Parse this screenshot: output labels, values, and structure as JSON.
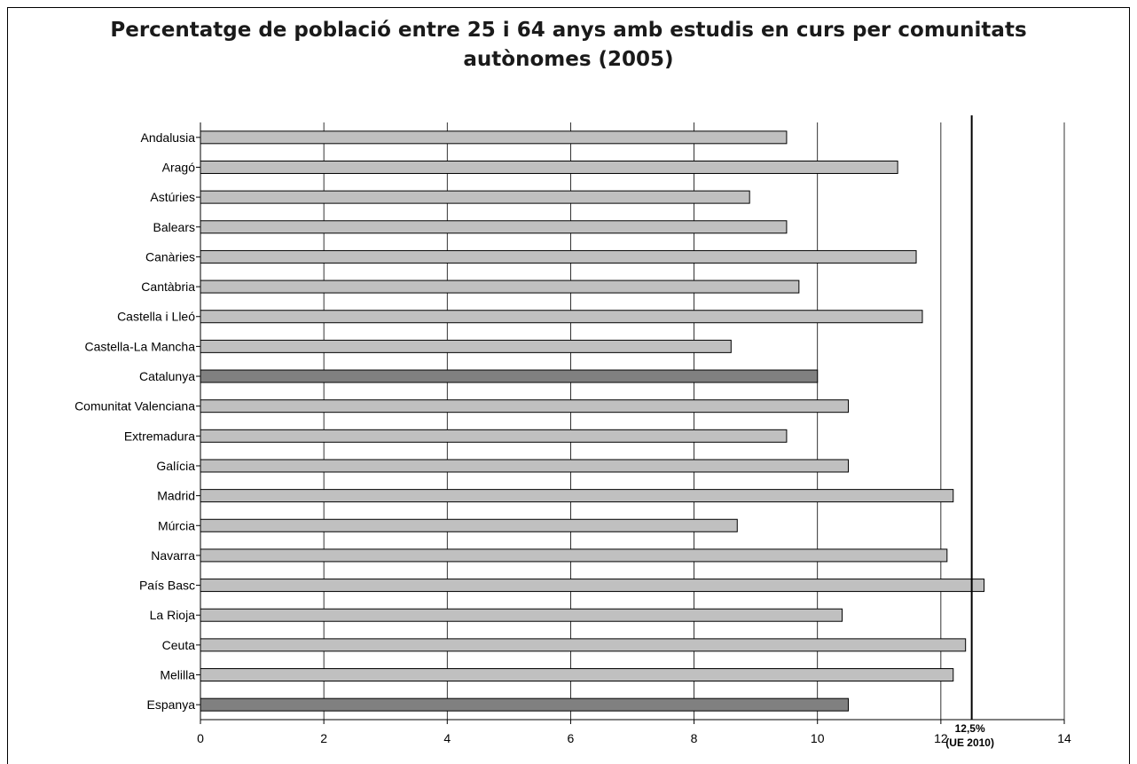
{
  "chart_data": {
    "type": "bar",
    "orientation": "horizontal",
    "title": "Percentatge de població entre 25 i 64 anys amb estudis en curs per comunitats autònomes (2005)",
    "xlabel": "",
    "ylabel": "",
    "xlim": [
      0,
      14
    ],
    "xticks": [
      0,
      2,
      4,
      6,
      8,
      10,
      12,
      14
    ],
    "grid": true,
    "categories": [
      "Andalusia",
      "Aragó",
      "Astúries",
      "Balears",
      "Canàries",
      "Cantàbria",
      "Castella i Lleó",
      "Castella-La Mancha",
      "Catalunya",
      "Comunitat Valenciana",
      "Extremadura",
      "Galícia",
      "Madrid",
      "Múrcia",
      "Navarra",
      "País Basc",
      "La Rioja",
      "Ceuta",
      "Melilla",
      "Espanya"
    ],
    "values": [
      9.5,
      11.3,
      8.9,
      9.5,
      11.6,
      9.7,
      11.7,
      8.6,
      10.0,
      10.5,
      9.5,
      10.5,
      12.2,
      8.7,
      12.1,
      12.7,
      10.4,
      12.4,
      12.2,
      10.5
    ],
    "highlighted": [
      "Catalunya",
      "Espanya"
    ],
    "colors": {
      "bar": "#c0c0c0",
      "bar_highlight": "#808080",
      "edge": "#000000"
    },
    "reference_line": {
      "value": 12.5,
      "label_line1": "12,5%",
      "label_line2": "(UE 2010)"
    }
  }
}
